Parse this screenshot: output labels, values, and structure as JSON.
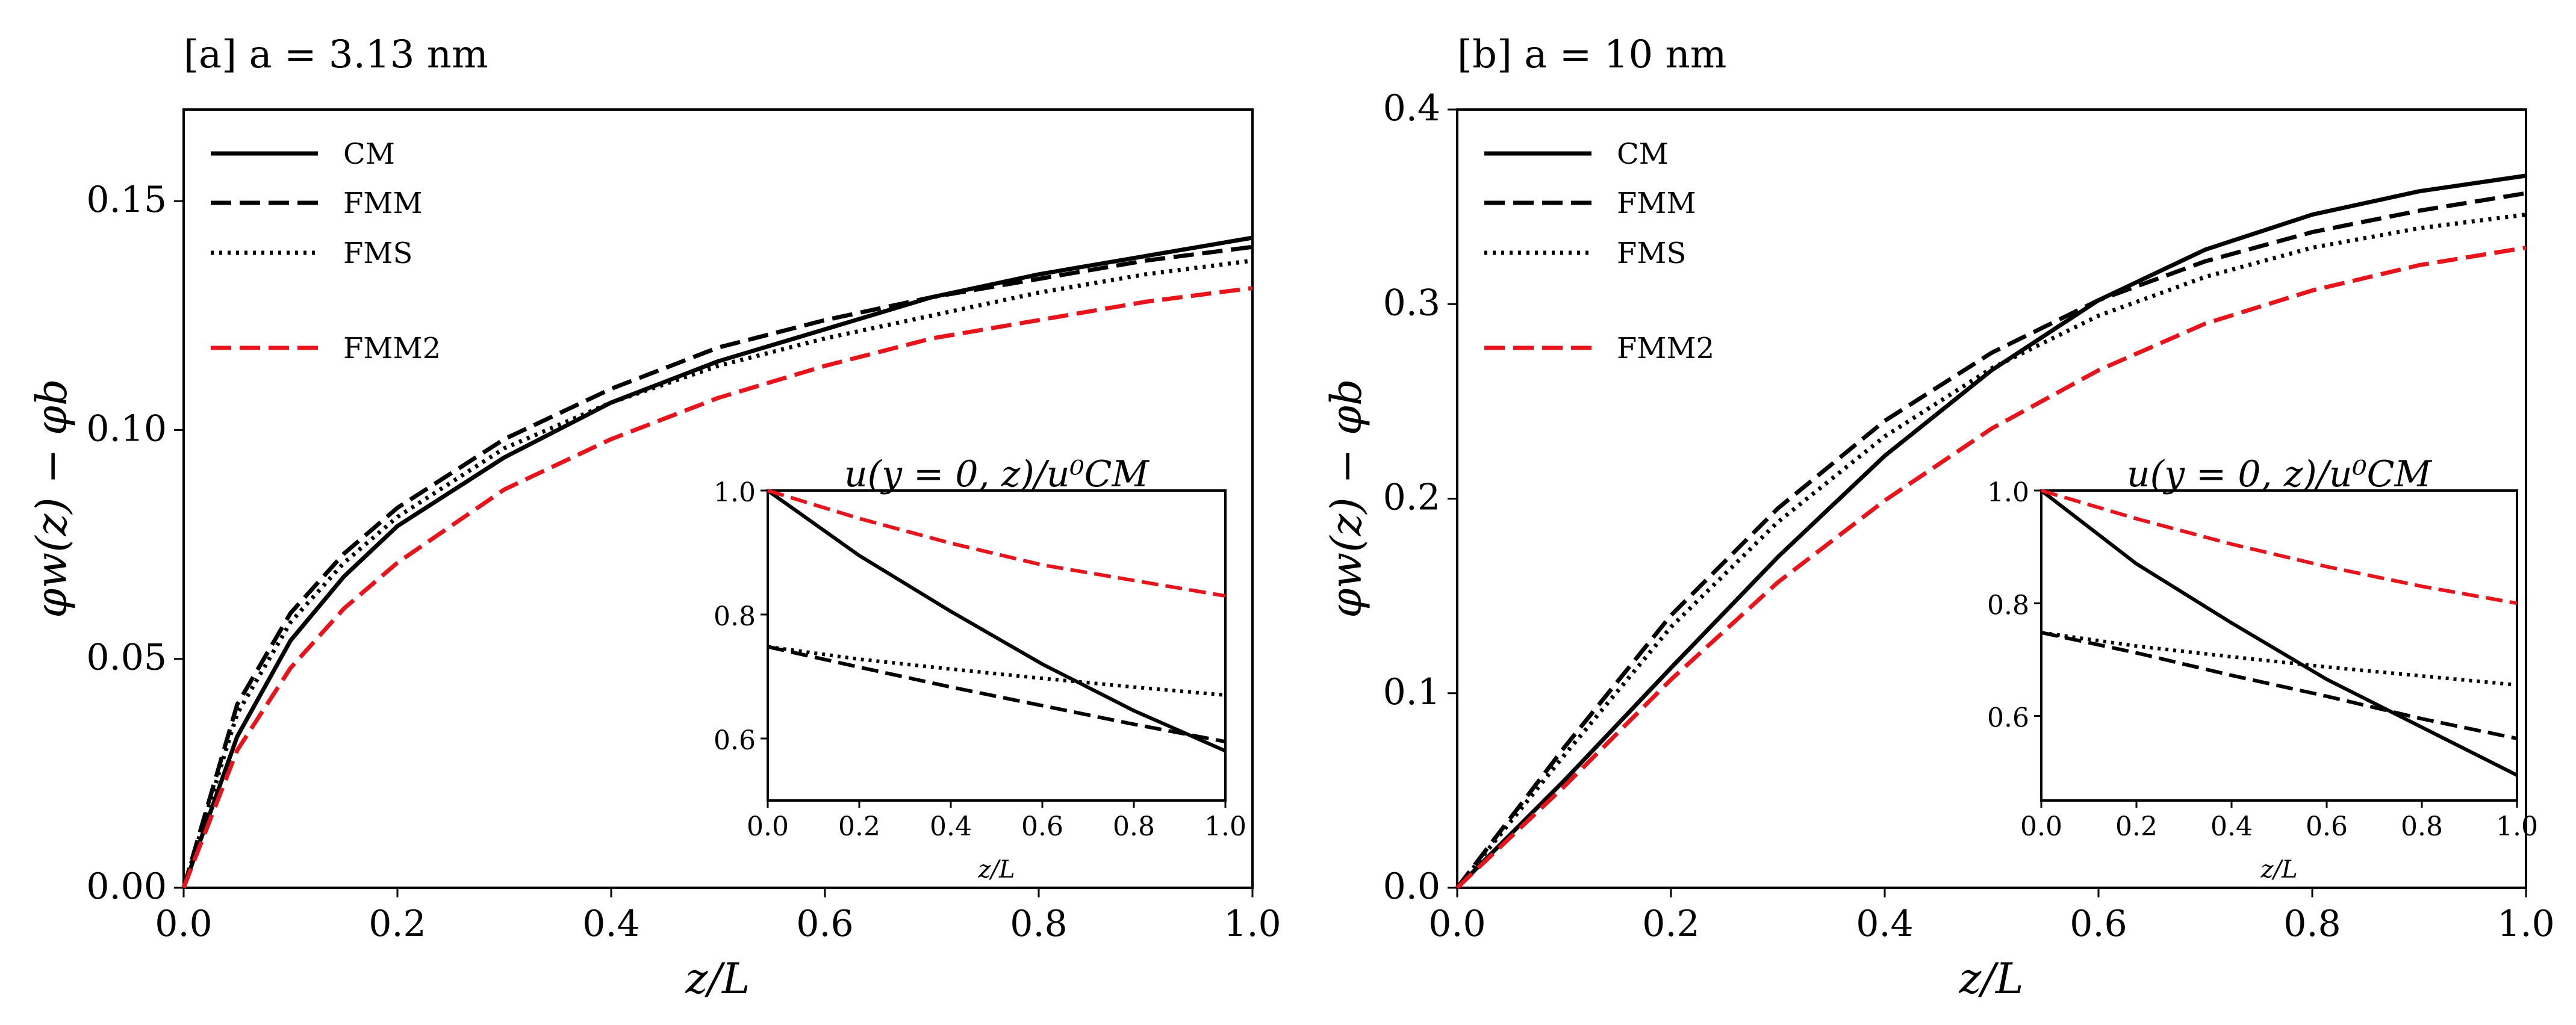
{
  "chart_data": [
    {
      "type": "line",
      "title": "[a] a = 3.13 nm",
      "xlabel": "z/L",
      "ylabel": "φw(z) − φb",
      "xlim": [
        0,
        1
      ],
      "ylim": [
        0,
        0.17
      ],
      "xticks": [
        "0.0",
        "0.2",
        "0.4",
        "0.6",
        "0.8",
        "1.0"
      ],
      "yticks": [
        "0.00",
        "0.05",
        "0.10",
        "0.15"
      ],
      "grid": false,
      "legend": "top-left",
      "x": [
        0,
        0.05,
        0.1,
        0.15,
        0.2,
        0.3,
        0.4,
        0.5,
        0.6,
        0.7,
        0.8,
        0.9,
        1.0
      ],
      "series": [
        {
          "name": "CM",
          "style": "solid",
          "color": "#000000",
          "values": [
            0,
            0.033,
            0.054,
            0.068,
            0.079,
            0.094,
            0.106,
            0.115,
            0.122,
            0.129,
            0.134,
            0.138,
            0.142
          ]
        },
        {
          "name": "FMM",
          "style": "dashed",
          "color": "#000000",
          "values": [
            0,
            0.04,
            0.06,
            0.073,
            0.083,
            0.098,
            0.109,
            0.118,
            0.124,
            0.129,
            0.133,
            0.137,
            0.14
          ]
        },
        {
          "name": "FMS",
          "style": "dotted",
          "color": "#000000",
          "values": [
            0,
            0.038,
            0.058,
            0.071,
            0.081,
            0.096,
            0.106,
            0.114,
            0.12,
            0.125,
            0.13,
            0.134,
            0.137
          ]
        },
        {
          "name": "FMM2",
          "style": "dashed",
          "color": "#e8141c",
          "values": [
            0,
            0.03,
            0.048,
            0.061,
            0.071,
            0.087,
            0.098,
            0.107,
            0.114,
            0.12,
            0.124,
            0.128,
            0.131
          ]
        }
      ],
      "inset": {
        "title": "u(y = 0, z)/u⁰CM",
        "xlabel": "z/L",
        "xlim": [
          0,
          1
        ],
        "ylim": [
          0.5,
          1.0
        ],
        "xticks": [
          "0.0",
          "0.2",
          "0.4",
          "0.6",
          "0.8",
          "1.0"
        ],
        "yticks": [
          "0.6",
          "0.8",
          "1.0"
        ],
        "x": [
          0,
          0.2,
          0.4,
          0.6,
          0.8,
          1.0
        ],
        "series": [
          {
            "name": "CM",
            "style": "solid",
            "color": "#000000",
            "values": [
              1.0,
              0.895,
              0.805,
              0.72,
              0.645,
              0.58
            ]
          },
          {
            "name": "FMM",
            "style": "dashed",
            "color": "#000000",
            "values": [
              0.748,
              0.715,
              0.683,
              0.653,
              0.623,
              0.595
            ]
          },
          {
            "name": "FMS",
            "style": "dotted",
            "color": "#000000",
            "values": [
              0.748,
              0.728,
              0.712,
              0.697,
              0.683,
              0.67
            ]
          },
          {
            "name": "FMM2",
            "style": "dashed",
            "color": "#e8141c",
            "values": [
              1.0,
              0.955,
              0.915,
              0.88,
              0.855,
              0.83
            ]
          }
        ]
      }
    },
    {
      "type": "line",
      "title": "[b] a = 10 nm",
      "xlabel": "z/L",
      "ylabel": "φw(z) − φb",
      "xlim": [
        0,
        1
      ],
      "ylim": [
        0,
        0.4
      ],
      "xticks": [
        "0.0",
        "0.2",
        "0.4",
        "0.6",
        "0.8",
        "1.0"
      ],
      "yticks": [
        "0.0",
        "0.1",
        "0.2",
        "0.3",
        "0.4"
      ],
      "grid": false,
      "legend": "top-left",
      "x": [
        0,
        0.1,
        0.2,
        0.3,
        0.4,
        0.5,
        0.6,
        0.7,
        0.8,
        0.9,
        1.0
      ],
      "series": [
        {
          "name": "CM",
          "style": "solid",
          "color": "#000000",
          "values": [
            0,
            0.055,
            0.113,
            0.17,
            0.222,
            0.266,
            0.302,
            0.328,
            0.346,
            0.358,
            0.366
          ]
        },
        {
          "name": "FMM",
          "style": "dashed",
          "color": "#000000",
          "values": [
            0,
            0.072,
            0.14,
            0.195,
            0.24,
            0.275,
            0.302,
            0.322,
            0.337,
            0.348,
            0.357
          ]
        },
        {
          "name": "FMS",
          "style": "dotted",
          "color": "#000000",
          "values": [
            0,
            0.068,
            0.134,
            0.188,
            0.232,
            0.267,
            0.294,
            0.314,
            0.329,
            0.339,
            0.346
          ]
        },
        {
          "name": "FMM2",
          "style": "dashed",
          "color": "#e8141c",
          "values": [
            0,
            0.052,
            0.107,
            0.157,
            0.199,
            0.236,
            0.266,
            0.29,
            0.307,
            0.32,
            0.329
          ]
        }
      ],
      "inset": {
        "title": "u(y = 0, z)/u⁰CM",
        "xlabel": "z/L",
        "xlim": [
          0,
          1
        ],
        "ylim": [
          0.45,
          1.0
        ],
        "xticks": [
          "0.0",
          "0.2",
          "0.4",
          "0.6",
          "0.8",
          "1.0"
        ],
        "yticks": [
          "0.6",
          "0.8",
          "1.0"
        ],
        "x": [
          0,
          0.2,
          0.4,
          0.6,
          0.8,
          1.0
        ],
        "series": [
          {
            "name": "CM",
            "style": "solid",
            "color": "#000000",
            "values": [
              1.0,
              0.87,
              0.765,
              0.665,
              0.58,
              0.495
            ]
          },
          {
            "name": "FMM",
            "style": "dashed",
            "color": "#000000",
            "values": [
              0.748,
              0.712,
              0.672,
              0.635,
              0.595,
              0.56
            ]
          },
          {
            "name": "FMS",
            "style": "dotted",
            "color": "#000000",
            "values": [
              0.748,
              0.724,
              0.705,
              0.687,
              0.671,
              0.655
            ]
          },
          {
            "name": "FMM2",
            "style": "dashed",
            "color": "#e8141c",
            "values": [
              1.0,
              0.95,
              0.905,
              0.865,
              0.83,
              0.8
            ]
          }
        ]
      }
    }
  ]
}
